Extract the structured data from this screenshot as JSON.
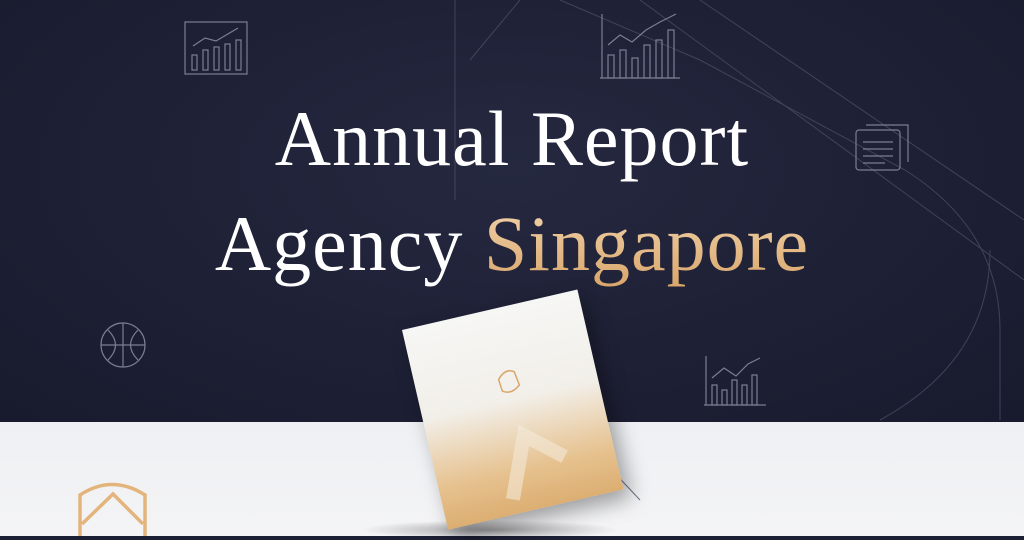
{
  "headline": {
    "line1": "Annual Report",
    "line2_prefix": "Agency",
    "line2_highlight": "Singapore"
  },
  "colors": {
    "background": "#1d1f35",
    "accent_gold": "#e0b98a",
    "floor": "#f2f2f4"
  },
  "icons": [
    "bar-chart-icon",
    "bar-chart-icon",
    "document-icon",
    "globe-icon",
    "bar-chart-icon",
    "shield-logo-icon"
  ]
}
